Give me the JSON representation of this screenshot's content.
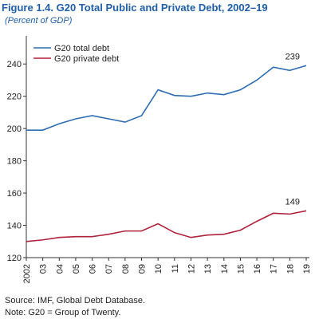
{
  "chart_data": {
    "type": "line",
    "title": "Figure 1.4. G20 Total Public and Private Debt, 2002–19",
    "subtitle": "(Percent of GDP)",
    "categories": [
      "2002",
      "03",
      "04",
      "05",
      "06",
      "07",
      "08",
      "09",
      "10",
      "11",
      "12",
      "13",
      "14",
      "15",
      "16",
      "17",
      "18",
      "19"
    ],
    "series": [
      {
        "name": "G20 total debt",
        "color": "#2e6db4",
        "values": [
          199,
          199,
          203,
          206,
          208,
          206,
          204,
          208,
          224,
          220.5,
          220,
          222,
          221,
          224,
          230,
          238,
          236,
          239
        ]
      },
      {
        "name": "G20 private debt",
        "color": "#b0213a",
        "values": [
          130,
          131,
          132.5,
          133,
          133,
          134.5,
          136.5,
          136.5,
          141,
          135.5,
          132.5,
          134,
          134.5,
          137,
          142.5,
          147.5,
          147,
          149
        ]
      }
    ],
    "ylim": [
      120,
      250
    ],
    "yticks": [
      120,
      140,
      160,
      180,
      200,
      220,
      240
    ],
    "legend": "upper left",
    "source": "Source: IMF, Global Debt Database.",
    "note": "Note: G20 = Group of Twenty."
  }
}
